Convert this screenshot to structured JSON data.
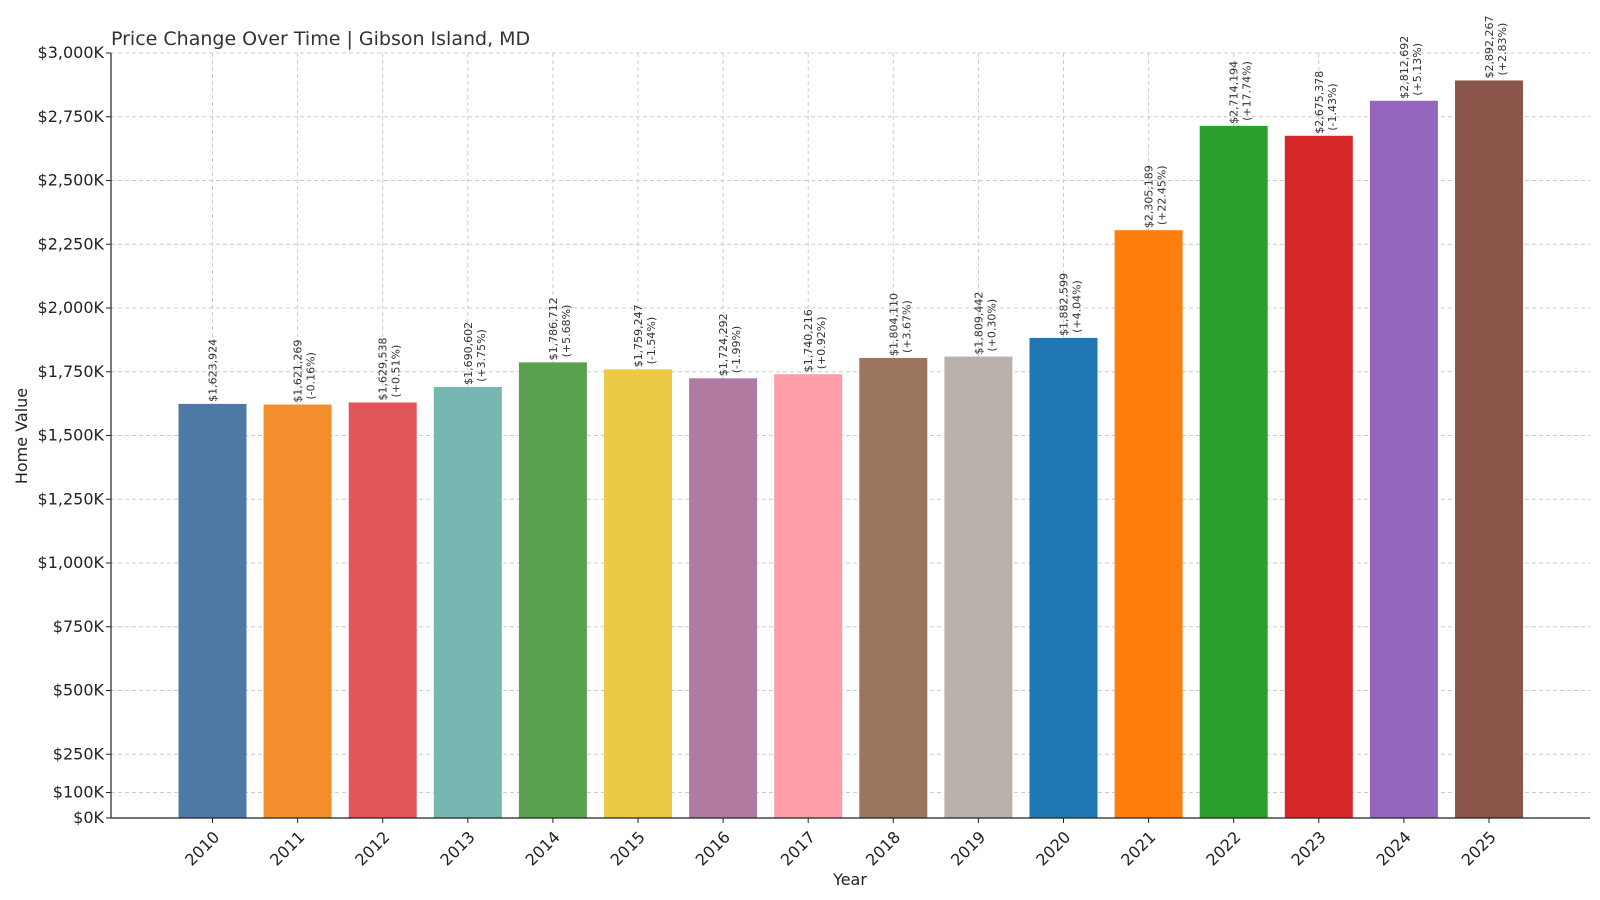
{
  "chart_data": {
    "type": "bar",
    "title": "Price Change Over Time | Gibson Island, MD",
    "xlabel": "Year",
    "ylabel": "Home Value",
    "ylim": [
      0,
      3000000
    ],
    "grid": true,
    "yticks": [
      {
        "value": 0,
        "label": "$0K"
      },
      {
        "value": 100000,
        "label": "$100K"
      },
      {
        "value": 250000,
        "label": "$250K"
      },
      {
        "value": 500000,
        "label": "$500K"
      },
      {
        "value": 750000,
        "label": "$750K"
      },
      {
        "value": 1000000,
        "label": "$1,000K"
      },
      {
        "value": 1250000,
        "label": "$1,250K"
      },
      {
        "value": 1500000,
        "label": "$1,500K"
      },
      {
        "value": 1750000,
        "label": "$1,750K"
      },
      {
        "value": 2000000,
        "label": "$2,000K"
      },
      {
        "value": 2250000,
        "label": "$2,250K"
      },
      {
        "value": 2500000,
        "label": "$2,500K"
      },
      {
        "value": 2750000,
        "label": "$2,750K"
      },
      {
        "value": 3000000,
        "label": "$3,000K"
      }
    ],
    "categories": [
      "2010",
      "2011",
      "2012",
      "2013",
      "2014",
      "2015",
      "2016",
      "2017",
      "2018",
      "2019",
      "2020",
      "2021",
      "2022",
      "2023",
      "2024",
      "2025"
    ],
    "values": [
      1623924,
      1621269,
      1629538,
      1690602,
      1786712,
      1759247,
      1724292,
      1740216,
      1804110,
      1809442,
      1882599,
      2305189,
      2714194,
      2675378,
      2812692,
      2892267
    ],
    "value_labels": [
      "$1,623,924",
      "$1,621,269",
      "$1,629,538",
      "$1,690,602",
      "$1,786,712",
      "$1,759,247",
      "$1,724,292",
      "$1,740,216",
      "$1,804,110",
      "$1,809,442",
      "$1,882,599",
      "$2,305,189",
      "$2,714,194",
      "$2,675,378",
      "$2,812,692",
      "$2,892,267"
    ],
    "change_labels": [
      "",
      "(-0.16%)",
      "(+0.51%)",
      "(+3.75%)",
      "(+5.68%)",
      "(-1.54%)",
      "(-1.99%)",
      "(+0.92%)",
      "(+3.67%)",
      "(+0.30%)",
      "(+4.04%)",
      "(+22.45%)",
      "(+17.74%)",
      "(-1.43%)",
      "(+5.13%)",
      "(+2.83%)"
    ],
    "colors": [
      "#4e79a7",
      "#f28e2b",
      "#e15759",
      "#76b7b2",
      "#59a14f",
      "#edc948",
      "#b07aa1",
      "#ff9da7",
      "#9c755f",
      "#bab0ac",
      "#1f77b4",
      "#ff7f0e",
      "#2ca02c",
      "#d62728",
      "#9467bd",
      "#8c564b"
    ]
  }
}
